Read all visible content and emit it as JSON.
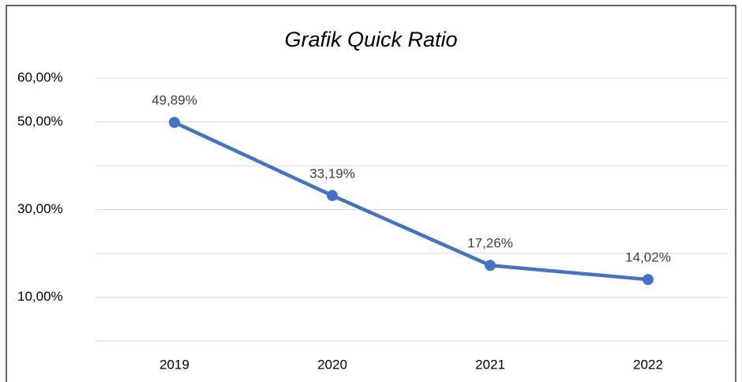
{
  "chart_data": {
    "type": "line",
    "title": "Grafik Quick Ratio",
    "categories": [
      "2019",
      "2020",
      "2021",
      "2022"
    ],
    "series": [
      {
        "name": "Quick Ratio",
        "color": "#4472c4",
        "values": [
          49.89,
          33.19,
          17.26,
          14.02
        ],
        "value_labels": [
          "49,89%",
          "33,19%",
          "17,26%",
          "14,02%"
        ]
      }
    ],
    "ylim": [
      0,
      60
    ],
    "yticks": [
      {
        "value": 0,
        "label": null
      },
      {
        "value": 10,
        "label": "10,00%"
      },
      {
        "value": 20,
        "label": null
      },
      {
        "value": 30,
        "label": "30,00%"
      },
      {
        "value": 40,
        "label": null
      },
      {
        "value": 50,
        "label": "50,00%"
      },
      {
        "value": 60,
        "label": "60,00%"
      }
    ],
    "grid": true
  }
}
